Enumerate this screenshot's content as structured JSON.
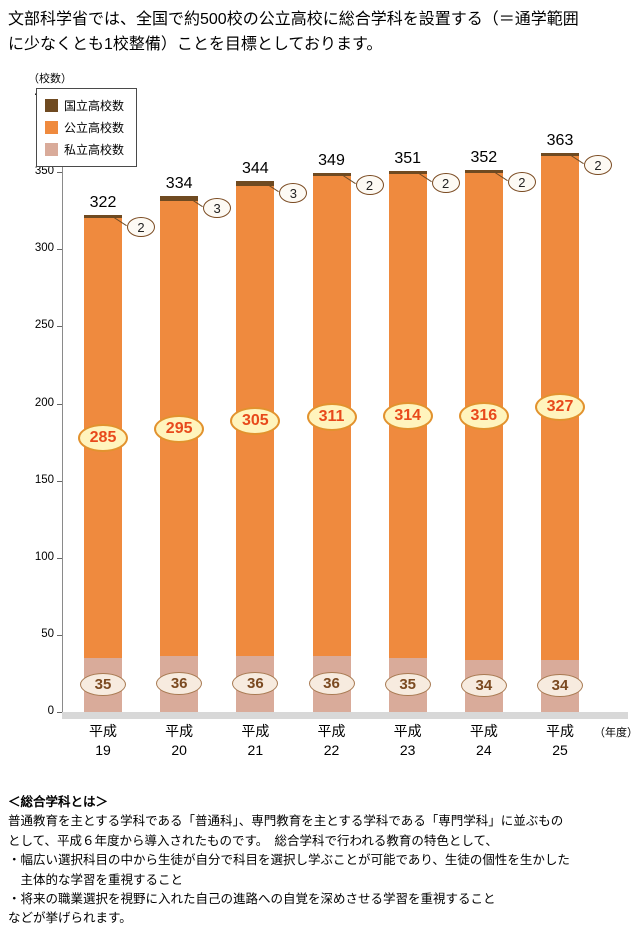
{
  "header": {
    "lines": [
      "文部科学省では、全国で約500校の公立高校に総合学科を設置する（＝通学範囲",
      "に少なくとも1校整備）ことを目標としております。"
    ]
  },
  "chart_data": {
    "type": "bar",
    "stacked": true,
    "title": "",
    "y_axis_label": "（校数）",
    "x_axis_label": "（年度）",
    "ylim": [
      0,
      400
    ],
    "ytick_interval": 50,
    "grid": false,
    "legend_position": "top-left",
    "categories": [
      "平成19",
      "平成20",
      "平成21",
      "平成22",
      "平成23",
      "平成24",
      "平成25"
    ],
    "series": [
      {
        "name": "国立高校数",
        "color": "#6f4a21",
        "values": [
          2,
          3,
          3,
          2,
          2,
          2,
          2
        ]
      },
      {
        "name": "公立高校数",
        "color": "#ef8a3e",
        "values": [
          285,
          295,
          305,
          311,
          314,
          316,
          327
        ]
      },
      {
        "name": "私立高校数",
        "color": "#d9ab9a",
        "values": [
          35,
          36,
          36,
          36,
          35,
          34,
          34
        ]
      }
    ],
    "totals": [
      322,
      334,
      344,
      349,
      351,
      352,
      363
    ]
  },
  "notes": {
    "heading": "＜総合学科とは＞",
    "lines": [
      "普通教育を主とする学科である「普通科」、専門教育を主とする学科である「専門学科」に並ぶもの",
      "として、平成６年度から導入されたものです。　総合学科で行われる教育の特色として、",
      "・幅広い選択科目の中から生徒が自分で科目を選択し学ぶことが可能であり、生徒の個性を生かした",
      "　主体的な学習を重視すること",
      "・将来の職業選択を視野に入れた自己の進路への自覚を深めさせる学習を重視すること",
      "などが挙げられます。"
    ]
  }
}
